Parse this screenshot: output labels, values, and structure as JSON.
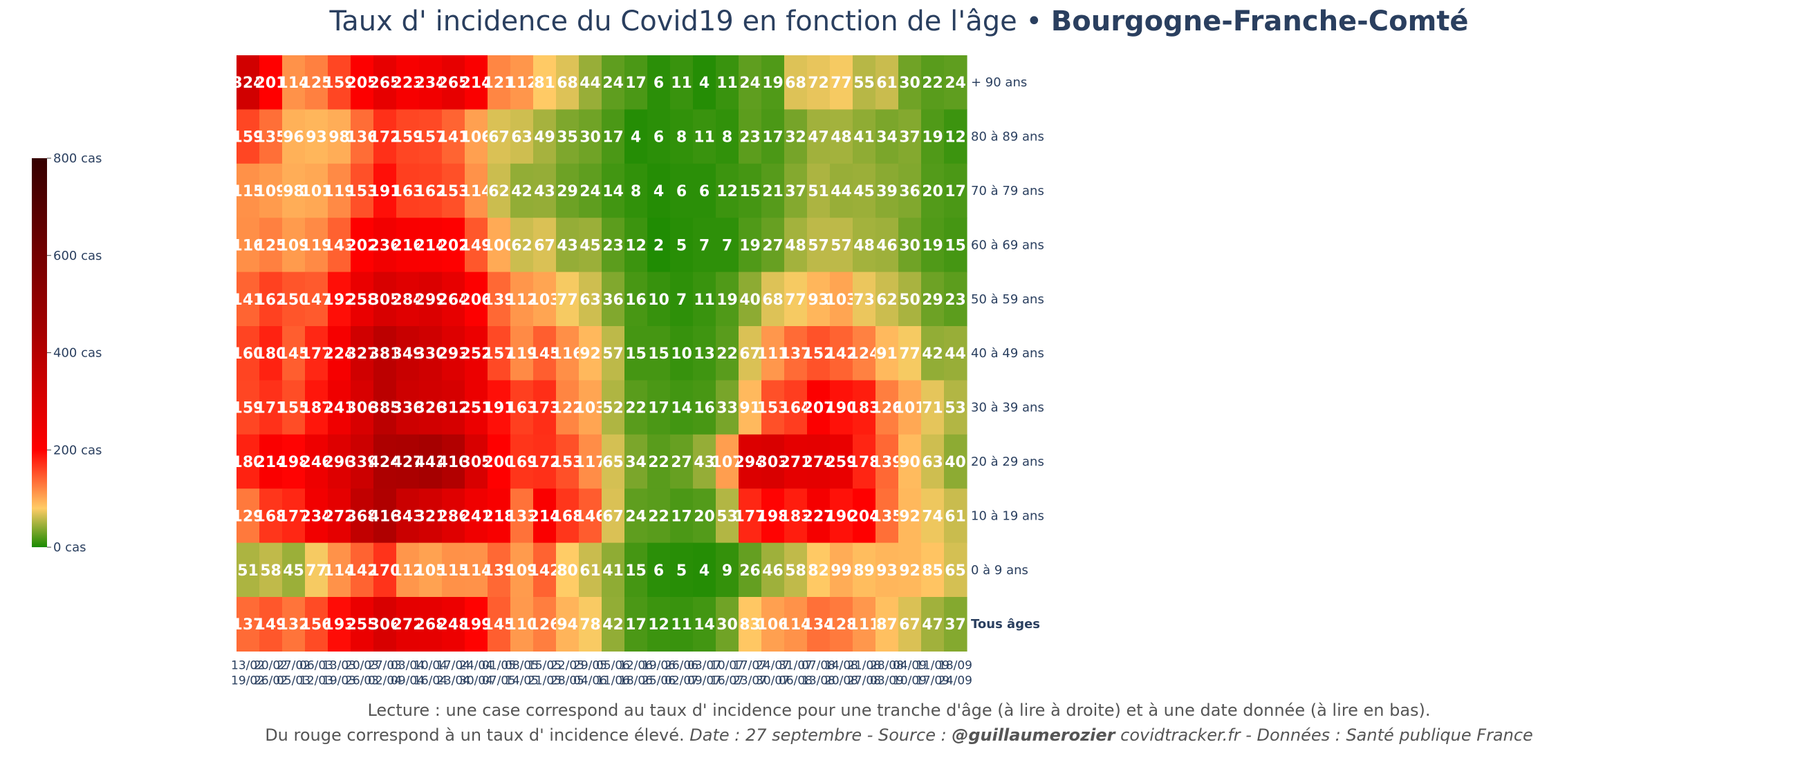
{
  "title": {
    "main": "Taux d' incidence du Covid19 en fonction de l'âge •",
    "region": "Bourgogne-Franche-Comté"
  },
  "footer": {
    "line1": "Lecture : une case correspond au taux d' incidence pour une tranche d'âge (à lire à droite) et à une date donnée (à lire en bas).",
    "line2_plain": "Du rouge correspond à un taux d' incidence élevé.",
    "line2_source_prefix": "Date : 27 septembre - Source :",
    "line2_author": "@guillaumerozier",
    "line2_source_suffix": "covidtracker.fr - Données : Santé publique France"
  },
  "colors": {
    "title": "#2a3f5f",
    "cell_text": "#ffffff",
    "scale": [
      "#1a8a00",
      "#ffcc66",
      "#ff0000",
      "#a30000",
      "#350000"
    ]
  },
  "chart_data": {
    "type": "heatmap",
    "title": "Taux d' incidence du Covid19 en fonction de l'âge • Bourgogne-Franche-Comté",
    "x_labels": [
      [
        "13/02",
        "19/02"
      ],
      [
        "20/02",
        "26/02"
      ],
      [
        "27/02",
        "05/03"
      ],
      [
        "06/03",
        "12/03"
      ],
      [
        "13/03",
        "19/03"
      ],
      [
        "20/03",
        "26/03"
      ],
      [
        "27/03",
        "02/04"
      ],
      [
        "03/04",
        "09/04"
      ],
      [
        "10/04",
        "16/04"
      ],
      [
        "17/04",
        "23/04"
      ],
      [
        "24/04",
        "30/04"
      ],
      [
        "01/05",
        "07/05"
      ],
      [
        "08/05",
        "14/05"
      ],
      [
        "15/05",
        "21/05"
      ],
      [
        "22/05",
        "28/05"
      ],
      [
        "29/05",
        "04/06"
      ],
      [
        "05/06",
        "11/06"
      ],
      [
        "12/06",
        "18/06"
      ],
      [
        "19/06",
        "25/06"
      ],
      [
        "26/06",
        "02/07"
      ],
      [
        "03/07",
        "09/07"
      ],
      [
        "10/07",
        "16/07"
      ],
      [
        "17/07",
        "23/07"
      ],
      [
        "24/07",
        "30/07"
      ],
      [
        "31/07",
        "06/08"
      ],
      [
        "07/08",
        "13/08"
      ],
      [
        "14/08",
        "20/08"
      ],
      [
        "21/08",
        "27/08"
      ],
      [
        "28/08",
        "03/09"
      ],
      [
        "04/09",
        "10/09"
      ],
      [
        "11/09",
        "17/09"
      ],
      [
        "18/09",
        "24/09"
      ]
    ],
    "y_labels": [
      "+ 90 ans",
      "80 à 89 ans",
      "70 à 79 ans",
      "60 à 69 ans",
      "50 à 59 ans",
      "40 à 49 ans",
      "30 à 39 ans",
      "20 à 29 ans",
      "10 à 19 ans",
      "0 à 9 ans",
      "Tous âges"
    ],
    "values": [
      [
        324,
        201,
        114,
        125,
        159,
        205,
        265,
        223,
        234,
        265,
        214,
        121,
        112,
        81,
        68,
        44,
        24,
        17,
        6,
        11,
        4,
        11,
        24,
        19,
        68,
        72,
        77,
        55,
        61,
        30,
        22,
        24
      ],
      [
        159,
        135,
        96,
        93,
        98,
        136,
        172,
        159,
        157,
        141,
        106,
        67,
        63,
        49,
        35,
        30,
        17,
        4,
        6,
        8,
        11,
        8,
        23,
        17,
        32,
        47,
        48,
        41,
        34,
        37,
        19,
        12
      ],
      [
        115,
        109,
        98,
        101,
        119,
        153,
        191,
        163,
        162,
        153,
        114,
        62,
        42,
        43,
        29,
        24,
        14,
        8,
        4,
        6,
        6,
        12,
        15,
        21,
        37,
        51,
        44,
        45,
        39,
        36,
        20,
        17
      ],
      [
        116,
        125,
        109,
        119,
        143,
        202,
        236,
        216,
        214,
        202,
        149,
        100,
        62,
        67,
        43,
        45,
        23,
        12,
        2,
        5,
        7,
        7,
        19,
        27,
        48,
        57,
        57,
        48,
        46,
        30,
        19,
        15
      ],
      [
        141,
        162,
        150,
        147,
        192,
        258,
        305,
        284,
        299,
        264,
        206,
        139,
        112,
        103,
        77,
        63,
        36,
        16,
        10,
        7,
        11,
        19,
        40,
        68,
        77,
        93,
        103,
        73,
        62,
        50,
        29,
        23
      ],
      [
        160,
        180,
        145,
        177,
        224,
        327,
        381,
        349,
        330,
        293,
        252,
        157,
        119,
        145,
        116,
        92,
        57,
        15,
        15,
        10,
        13,
        22,
        67,
        111,
        137,
        152,
        142,
        124,
        91,
        77,
        42,
        44
      ],
      [
        159,
        171,
        155,
        187,
        241,
        306,
        385,
        336,
        326,
        312,
        251,
        191,
        163,
        173,
        122,
        103,
        52,
        22,
        17,
        14,
        16,
        33,
        91,
        153,
        164,
        207,
        190,
        183,
        126,
        101,
        71,
        53
      ],
      [
        180,
        214,
        198,
        246,
        290,
        339,
        424,
        427,
        443,
        410,
        305,
        200,
        169,
        172,
        153,
        117,
        65,
        34,
        22,
        27,
        43,
        107,
        294,
        303,
        271,
        274,
        259,
        178,
        139,
        90,
        63,
        40
      ],
      [
        129,
        168,
        177,
        234,
        272,
        368,
        416,
        343,
        321,
        286,
        241,
        218,
        133,
        214,
        168,
        146,
        67,
        24,
        22,
        17,
        20,
        53,
        177,
        198,
        183,
        227,
        190,
        204,
        135,
        92,
        74,
        61
      ],
      [
        51,
        58,
        45,
        77,
        114,
        142,
        170,
        112,
        105,
        115,
        114,
        139,
        109,
        142,
        80,
        61,
        41,
        15,
        6,
        5,
        4,
        9,
        26,
        46,
        58,
        82,
        99,
        89,
        93,
        92,
        85,
        65
      ],
      [
        137,
        149,
        132,
        156,
        193,
        255,
        306,
        272,
        268,
        248,
        199,
        145,
        110,
        126,
        94,
        78,
        42,
        17,
        12,
        11,
        14,
        30,
        83,
        106,
        114,
        134,
        128,
        111,
        87,
        67,
        47,
        37
      ]
    ],
    "colorbar": {
      "range": [
        0,
        800
      ],
      "tick_values": [
        0,
        200,
        400,
        600,
        800
      ],
      "tick_labels": [
        "0 cas",
        "200 cas",
        "400 cas",
        "600 cas",
        "800 cas"
      ]
    }
  }
}
